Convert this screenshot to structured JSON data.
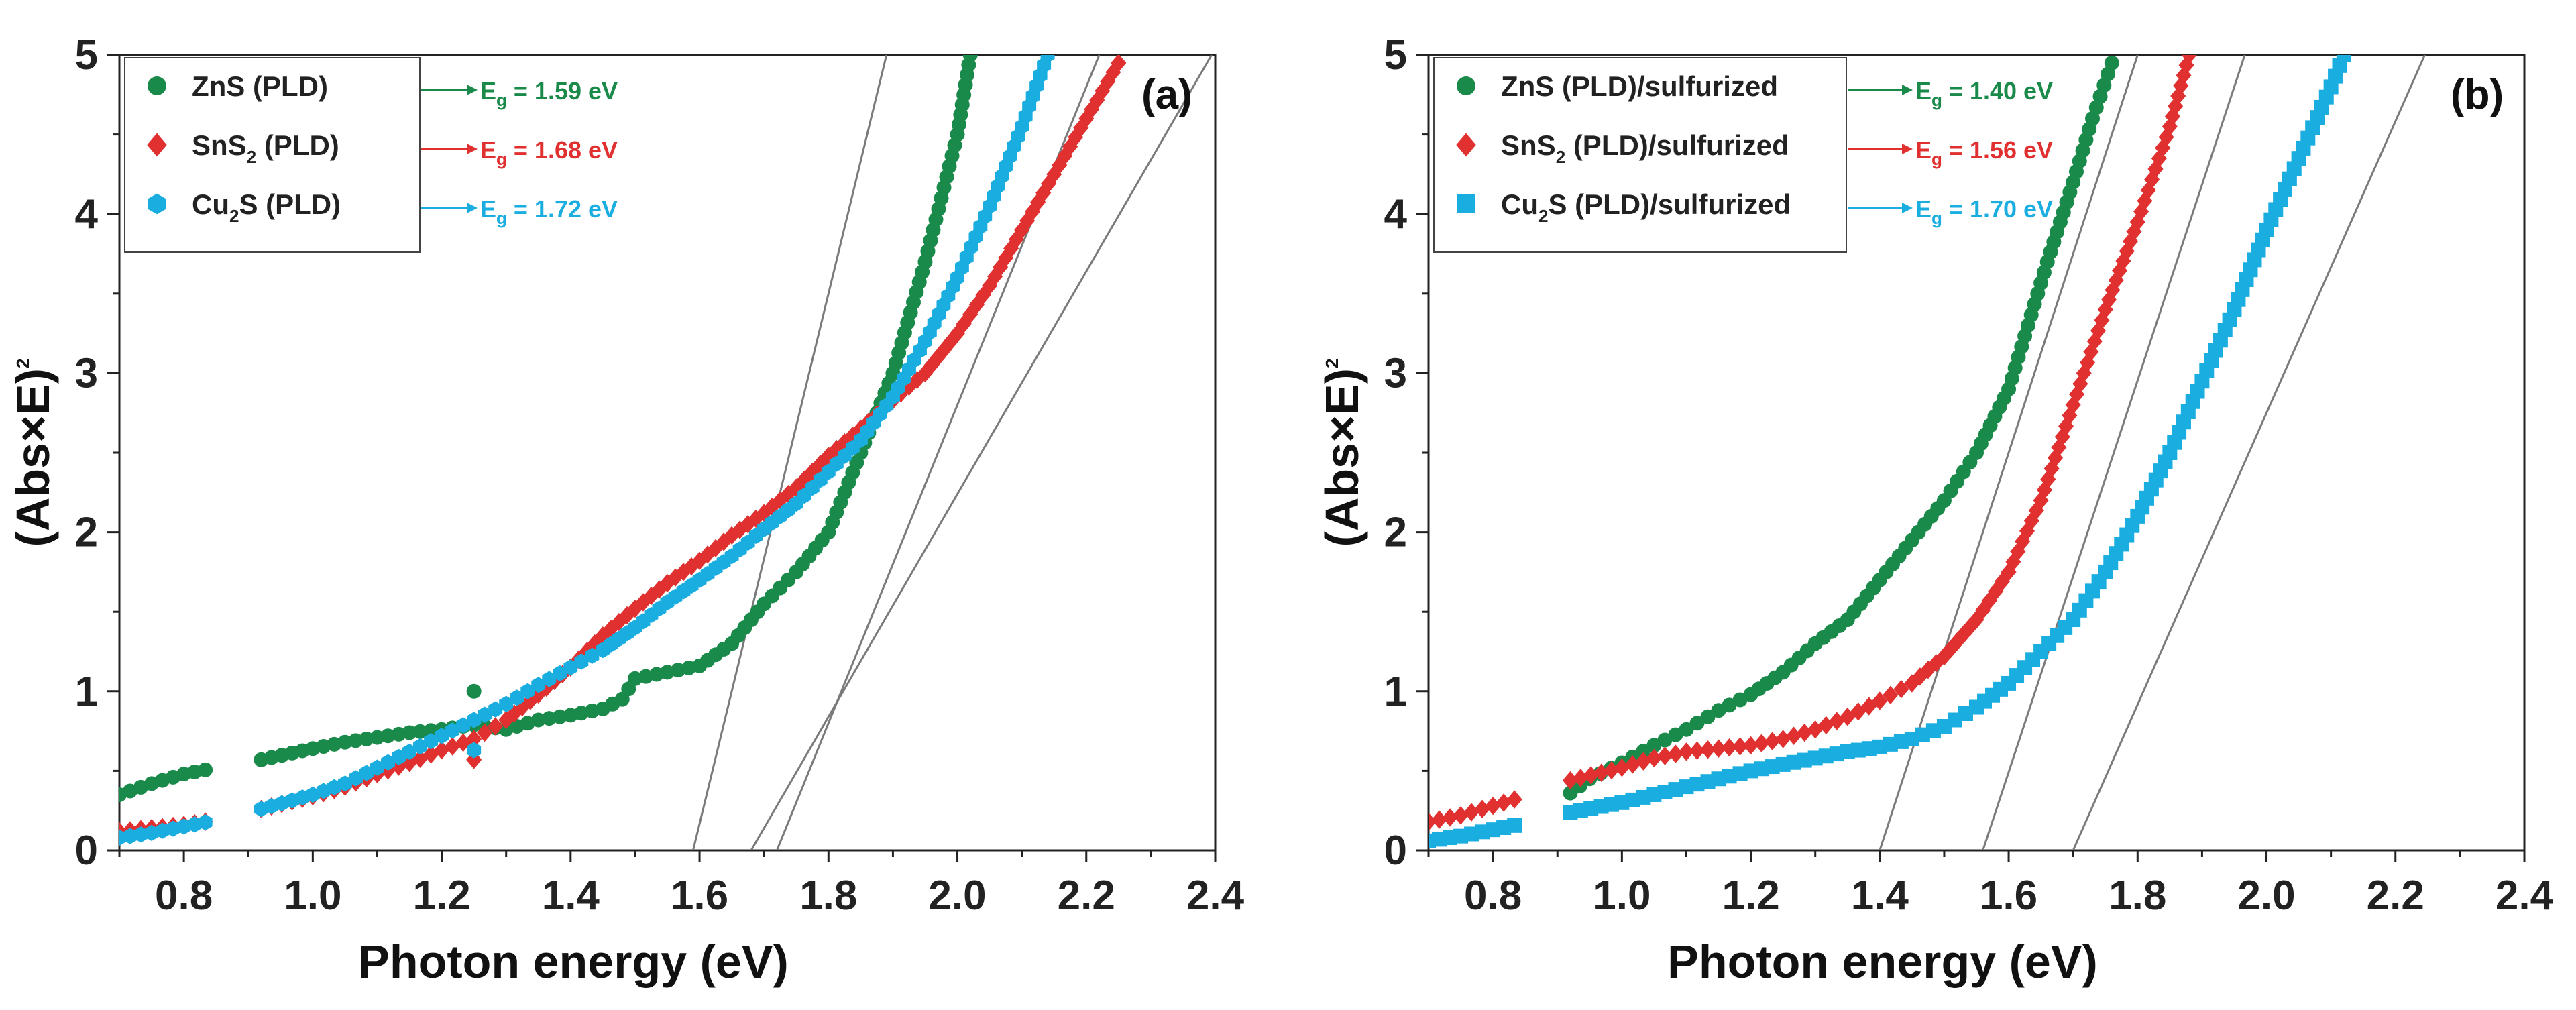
{
  "chart_data": [
    {
      "type": "scatter",
      "panel_label": "(a)",
      "xlabel": "Photon energy (eV)",
      "ylabel": "(Abs×E)",
      "ylabel_sup": "2",
      "xlim": [
        0.7,
        2.4
      ],
      "ylim": [
        0,
        5
      ],
      "xticks": [
        "0.8",
        "1.0",
        "1.2",
        "1.4",
        "1.6",
        "1.8",
        "2.0",
        "2.2",
        "2.4"
      ],
      "yticks": [
        "0",
        "1",
        "2",
        "3",
        "4",
        "5"
      ],
      "legend_position": "top-left",
      "series": [
        {
          "name": "ZnS (PLD)",
          "name_main": "ZnS (PLD)",
          "name_sub": "",
          "name_rest": "",
          "marker": "circle",
          "color": "#1a8a4a",
          "eg_label": "E",
          "eg_sub": "g",
          "eg_value": " = 1.59 eV",
          "eg": 1.59,
          "points": [
            [
              0.7,
              0.35
            ],
            [
              0.75,
              0.42
            ],
            [
              0.8,
              0.48
            ],
            [
              0.85,
              0.52
            ],
            [
              0.92,
              0.57
            ],
            [
              1.0,
              0.64
            ],
            [
              1.05,
              0.68
            ],
            [
              1.1,
              0.71
            ],
            [
              1.15,
              0.74
            ],
            [
              1.2,
              0.76
            ],
            [
              1.25,
              0.79
            ],
            [
              1.3,
              0.76
            ],
            [
              1.35,
              0.82
            ],
            [
              1.4,
              0.85
            ],
            [
              1.45,
              0.89
            ],
            [
              1.48,
              0.95
            ],
            [
              1.5,
              1.08
            ],
            [
              1.55,
              1.12
            ],
            [
              1.6,
              1.16
            ],
            [
              1.65,
              1.3
            ],
            [
              1.7,
              1.55
            ],
            [
              1.75,
              1.75
            ],
            [
              1.8,
              2.0
            ],
            [
              1.85,
              2.5
            ],
            [
              1.9,
              3.0
            ],
            [
              1.95,
              3.7
            ],
            [
              2.0,
              4.5
            ],
            [
              2.02,
              5.0
            ]
          ],
          "outliers": [
            [
              1.25,
              1.0
            ]
          ]
        },
        {
          "name": "SnS2 (PLD)",
          "name_main": "SnS",
          "name_sub": "2",
          "name_rest": " (PLD)",
          "marker": "diamond",
          "color": "#e03030",
          "eg_label": "E",
          "eg_sub": "g",
          "eg_value": " = 1.68 eV",
          "eg": 1.68,
          "points": [
            [
              0.7,
              0.12
            ],
            [
              0.75,
              0.14
            ],
            [
              0.8,
              0.16
            ],
            [
              0.85,
              0.19
            ],
            [
              0.92,
              0.26
            ],
            [
              1.0,
              0.34
            ],
            [
              1.05,
              0.4
            ],
            [
              1.1,
              0.48
            ],
            [
              1.15,
              0.55
            ],
            [
              1.2,
              0.63
            ],
            [
              1.25,
              0.7
            ],
            [
              1.3,
              0.82
            ],
            [
              1.35,
              0.98
            ],
            [
              1.4,
              1.15
            ],
            [
              1.45,
              1.35
            ],
            [
              1.5,
              1.52
            ],
            [
              1.55,
              1.68
            ],
            [
              1.6,
              1.82
            ],
            [
              1.65,
              1.98
            ],
            [
              1.7,
              2.12
            ],
            [
              1.75,
              2.28
            ],
            [
              1.8,
              2.48
            ],
            [
              1.85,
              2.65
            ],
            [
              1.9,
              2.83
            ],
            [
              1.95,
              3.0
            ],
            [
              2.0,
              3.25
            ],
            [
              2.05,
              3.55
            ],
            [
              2.1,
              3.9
            ],
            [
              2.15,
              4.25
            ],
            [
              2.2,
              4.6
            ],
            [
              2.25,
              4.95
            ]
          ],
          "outliers": [
            [
              1.25,
              0.57
            ]
          ]
        },
        {
          "name": "Cu2S (PLD)",
          "name_main": "Cu",
          "name_sub": "2",
          "name_rest": "S (PLD)",
          "marker": "hexagon",
          "color": "#1aaee0",
          "eg_label": "E",
          "eg_sub": "g",
          "eg_value": " = 1.72 eV",
          "eg": 1.72,
          "points": [
            [
              0.7,
              0.08
            ],
            [
              0.75,
              0.11
            ],
            [
              0.8,
              0.15
            ],
            [
              0.85,
              0.19
            ],
            [
              0.92,
              0.26
            ],
            [
              1.0,
              0.35
            ],
            [
              1.05,
              0.42
            ],
            [
              1.1,
              0.52
            ],
            [
              1.15,
              0.62
            ],
            [
              1.2,
              0.72
            ],
            [
              1.25,
              0.82
            ],
            [
              1.3,
              0.92
            ],
            [
              1.35,
              1.04
            ],
            [
              1.4,
              1.15
            ],
            [
              1.45,
              1.26
            ],
            [
              1.5,
              1.4
            ],
            [
              1.55,
              1.56
            ],
            [
              1.6,
              1.7
            ],
            [
              1.65,
              1.85
            ],
            [
              1.7,
              2.02
            ],
            [
              1.75,
              2.18
            ],
            [
              1.8,
              2.38
            ],
            [
              1.85,
              2.58
            ],
            [
              1.9,
              2.85
            ],
            [
              1.95,
              3.2
            ],
            [
              2.0,
              3.6
            ],
            [
              2.05,
              4.05
            ],
            [
              2.1,
              4.55
            ],
            [
              2.14,
              5.0
            ]
          ],
          "outliers": [
            [
              1.25,
              0.63
            ]
          ]
        }
      ]
    },
    {
      "type": "scatter",
      "panel_label": "(b)",
      "xlabel": "Photon energy (eV)",
      "ylabel": "(Abs×E)",
      "ylabel_sup": "2",
      "xlim": [
        0.7,
        2.4
      ],
      "ylim": [
        0,
        5
      ],
      "xticks": [
        "0.8",
        "1.0",
        "1.2",
        "1.4",
        "1.6",
        "1.8",
        "2.0",
        "2.2",
        "2.4"
      ],
      "yticks": [
        "0",
        "1",
        "2",
        "3",
        "4",
        "5"
      ],
      "legend_position": "top-left",
      "series": [
        {
          "name": "ZnS (PLD)/sulfurized",
          "name_main": "ZnS (PLD)/sulfurized",
          "name_sub": "",
          "name_rest": "",
          "marker": "circle",
          "color": "#1a8a4a",
          "eg_label": "E",
          "eg_sub": "g",
          "eg_value": " = 1.40 eV",
          "eg": 1.4,
          "points": [
            [
              0.92,
              0.36
            ],
            [
              0.95,
              0.45
            ],
            [
              1.0,
              0.55
            ],
            [
              1.05,
              0.66
            ],
            [
              1.1,
              0.76
            ],
            [
              1.15,
              0.88
            ],
            [
              1.2,
              0.98
            ],
            [
              1.25,
              1.12
            ],
            [
              1.3,
              1.3
            ],
            [
              1.35,
              1.45
            ],
            [
              1.4,
              1.7
            ],
            [
              1.45,
              1.95
            ],
            [
              1.5,
              2.2
            ],
            [
              1.55,
              2.5
            ],
            [
              1.6,
              2.9
            ],
            [
              1.63,
              3.3
            ],
            [
              1.66,
              3.7
            ],
            [
              1.7,
              4.2
            ],
            [
              1.73,
              4.6
            ],
            [
              1.76,
              4.95
            ]
          ],
          "outliers": []
        },
        {
          "name": "SnS2 (PLD)/sulfurized",
          "name_main": "SnS",
          "name_sub": "2",
          "name_rest": " (PLD)/sulfurized",
          "marker": "diamond",
          "color": "#e03030",
          "eg_label": "E",
          "eg_sub": "g",
          "eg_value": " = 1.56 eV",
          "eg": 1.56,
          "points": [
            [
              0.7,
              0.18
            ],
            [
              0.75,
              0.22
            ],
            [
              0.8,
              0.28
            ],
            [
              0.85,
              0.34
            ],
            [
              0.92,
              0.44
            ],
            [
              1.0,
              0.52
            ],
            [
              1.05,
              0.58
            ],
            [
              1.1,
              0.62
            ],
            [
              1.15,
              0.64
            ],
            [
              1.2,
              0.66
            ],
            [
              1.25,
              0.7
            ],
            [
              1.3,
              0.76
            ],
            [
              1.35,
              0.84
            ],
            [
              1.4,
              0.94
            ],
            [
              1.45,
              1.05
            ],
            [
              1.5,
              1.22
            ],
            [
              1.55,
              1.45
            ],
            [
              1.6,
              1.75
            ],
            [
              1.65,
              2.2
            ],
            [
              1.7,
              2.8
            ],
            [
              1.75,
              3.4
            ],
            [
              1.8,
              3.95
            ],
            [
              1.85,
              4.55
            ],
            [
              1.88,
              5.0
            ]
          ],
          "outliers": []
        },
        {
          "name": "Cu2S (PLD)/sulfurized",
          "name_main": "Cu",
          "name_sub": "2",
          "name_rest": "S (PLD)/sulfurized",
          "marker": "square",
          "color": "#1aaee0",
          "eg_label": "E",
          "eg_sub": "g",
          "eg_value": " = 1.70 eV",
          "eg": 1.7,
          "points": [
            [
              0.7,
              0.06
            ],
            [
              0.75,
              0.09
            ],
            [
              0.8,
              0.13
            ],
            [
              0.85,
              0.17
            ],
            [
              0.92,
              0.24
            ],
            [
              1.0,
              0.3
            ],
            [
              1.05,
              0.35
            ],
            [
              1.1,
              0.4
            ],
            [
              1.15,
              0.45
            ],
            [
              1.2,
              0.5
            ],
            [
              1.25,
              0.54
            ],
            [
              1.3,
              0.58
            ],
            [
              1.35,
              0.62
            ],
            [
              1.4,
              0.65
            ],
            [
              1.45,
              0.7
            ],
            [
              1.5,
              0.78
            ],
            [
              1.55,
              0.9
            ],
            [
              1.6,
              1.05
            ],
            [
              1.65,
              1.25
            ],
            [
              1.7,
              1.45
            ],
            [
              1.75,
              1.75
            ],
            [
              1.8,
              2.1
            ],
            [
              1.85,
              2.5
            ],
            [
              1.9,
              2.95
            ],
            [
              1.95,
              3.4
            ],
            [
              2.0,
              3.9
            ],
            [
              2.05,
              4.35
            ],
            [
              2.1,
              4.8
            ],
            [
              2.12,
              5.0
            ]
          ],
          "outliers": []
        }
      ]
    }
  ]
}
